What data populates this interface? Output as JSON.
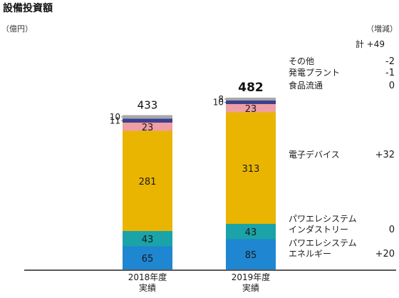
{
  "chart_data": {
    "type": "bar",
    "stacked": true,
    "title": "設備投資額",
    "unit_left": "（億円）",
    "unit_right": "（増減）",
    "categories": [
      "2018年度\n実績",
      "2019年度\n実績"
    ],
    "totals": [
      433,
      482
    ],
    "series": [
      {
        "name": "パワエレシステム\nエネルギー",
        "values": [
          65,
          85
        ],
        "color": "#1f86d1",
        "change": "+20"
      },
      {
        "name": "パワエレシステム\nインダストリー",
        "values": [
          43,
          43
        ],
        "color": "#1aa3a8",
        "change": "0"
      },
      {
        "name": "電子デバイス",
        "values": [
          281,
          313
        ],
        "color": "#eab501",
        "change": "+32"
      },
      {
        "name": "食品流通",
        "values": [
          23,
          23
        ],
        "color": "#ee9fa3",
        "change": "0"
      },
      {
        "name": "発電プラント",
        "values": [
          11,
          10
        ],
        "color": "#3d3f8f",
        "change": "-1"
      },
      {
        "name": "その他",
        "values": [
          10,
          8
        ],
        "color": "#a8a8a8",
        "change": "-2"
      }
    ],
    "total_change_label": "計",
    "total_change": "+49",
    "ylim": [
      0,
      500
    ],
    "grid": false,
    "legend": "right"
  }
}
